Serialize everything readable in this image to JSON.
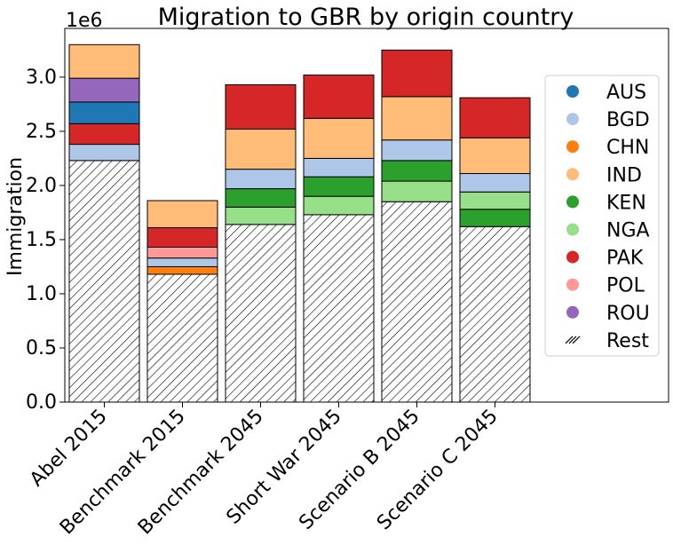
{
  "chart_data": {
    "type": "bar",
    "stacked": true,
    "title": "Migration to GBR by origin country",
    "ylabel": "Immigration",
    "xlabel": "",
    "offset_label": "1e6",
    "ylim": [
      0,
      3.45
    ],
    "yticks": [
      0.0,
      0.5,
      1.0,
      1.5,
      2.0,
      2.5,
      3.0
    ],
    "ytick_labels": [
      "0.0",
      "0.5",
      "1.0",
      "1.5",
      "2.0",
      "2.5",
      "3.0"
    ],
    "categories": [
      "Abel 2015",
      "Benchmark 2015",
      "Benchmark 2045",
      "Short War 2045",
      "Scenario B 2045",
      "Scenario C 2045"
    ],
    "legend": {
      "placement": "center-right",
      "entries": [
        {
          "name": "AUS",
          "color": "#1f77b4"
        },
        {
          "name": "BGD",
          "color": "#aec7e8"
        },
        {
          "name": "CHN",
          "color": "#ff7f0e"
        },
        {
          "name": "IND",
          "color": "#ffbb78"
        },
        {
          "name": "KEN",
          "color": "#2ca02c"
        },
        {
          "name": "NGA",
          "color": "#98df8a"
        },
        {
          "name": "PAK",
          "color": "#d62728"
        },
        {
          "name": "POL",
          "color": "#ff9896"
        },
        {
          "name": "ROU",
          "color": "#9467bd"
        },
        {
          "name": "Rest",
          "color": "hatch"
        }
      ]
    },
    "stacks": [
      [
        {
          "name": "Rest",
          "value": 2.23
        },
        {
          "name": "BGD",
          "value": 0.15
        },
        {
          "name": "PAK",
          "value": 0.19
        },
        {
          "name": "AUS",
          "value": 0.2
        },
        {
          "name": "ROU",
          "value": 0.22
        },
        {
          "name": "IND",
          "value": 0.31
        }
      ],
      [
        {
          "name": "Rest",
          "value": 1.18
        },
        {
          "name": "CHN",
          "value": 0.07
        },
        {
          "name": "BGD",
          "value": 0.08
        },
        {
          "name": "POL",
          "value": 0.1
        },
        {
          "name": "PAK",
          "value": 0.18
        },
        {
          "name": "IND",
          "value": 0.25
        }
      ],
      [
        {
          "name": "Rest",
          "value": 1.64
        },
        {
          "name": "NGA",
          "value": 0.16
        },
        {
          "name": "KEN",
          "value": 0.17
        },
        {
          "name": "BGD",
          "value": 0.18
        },
        {
          "name": "IND",
          "value": 0.37
        },
        {
          "name": "PAK",
          "value": 0.41
        }
      ],
      [
        {
          "name": "Rest",
          "value": 1.73
        },
        {
          "name": "NGA",
          "value": 0.17
        },
        {
          "name": "KEN",
          "value": 0.18
        },
        {
          "name": "BGD",
          "value": 0.17
        },
        {
          "name": "IND",
          "value": 0.37
        },
        {
          "name": "PAK",
          "value": 0.4
        }
      ],
      [
        {
          "name": "Rest",
          "value": 1.85
        },
        {
          "name": "NGA",
          "value": 0.19
        },
        {
          "name": "KEN",
          "value": 0.19
        },
        {
          "name": "BGD",
          "value": 0.19
        },
        {
          "name": "IND",
          "value": 0.4
        },
        {
          "name": "PAK",
          "value": 0.43
        }
      ],
      [
        {
          "name": "Rest",
          "value": 1.62
        },
        {
          "name": "KEN",
          "value": 0.16
        },
        {
          "name": "NGA",
          "value": 0.16
        },
        {
          "name": "BGD",
          "value": 0.17
        },
        {
          "name": "IND",
          "value": 0.33
        },
        {
          "name": "PAK",
          "value": 0.37
        }
      ]
    ]
  }
}
